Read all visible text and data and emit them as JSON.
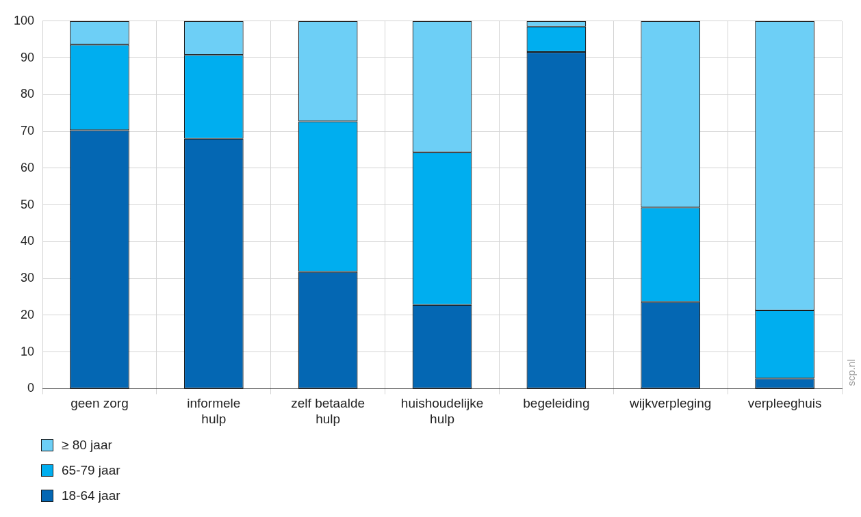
{
  "chart_data": {
    "type": "bar",
    "stacked": true,
    "categories": [
      "geen zorg",
      "informele\nhulp",
      "zelf betaalde\nhulp",
      "huishoudelijke\nhulp",
      "begeleiding",
      "wijkverpleging",
      "verpleeghuis"
    ],
    "series": [
      {
        "name": "18-64 jaar",
        "color": "#0467b3",
        "values": [
          70.3,
          68.0,
          31.8,
          22.8,
          91.6,
          23.6,
          2.8
        ]
      },
      {
        "name": "65-79 jaar",
        "color": "#00aeef",
        "values": [
          23.3,
          22.8,
          40.9,
          41.5,
          6.9,
          25.7,
          18.5
        ]
      },
      {
        "name": "≥ 80 jaar",
        "color": "#6dcff6",
        "values": [
          6.4,
          9.2,
          27.3,
          35.7,
          1.5,
          50.7,
          78.7
        ]
      }
    ],
    "ylim": [
      0,
      100
    ],
    "yticks": [
      0,
      10,
      20,
      30,
      40,
      50,
      60,
      70,
      80,
      90,
      100
    ],
    "grid": true,
    "legend": "bottom left",
    "annotations": [
      "scp.nl"
    ]
  }
}
